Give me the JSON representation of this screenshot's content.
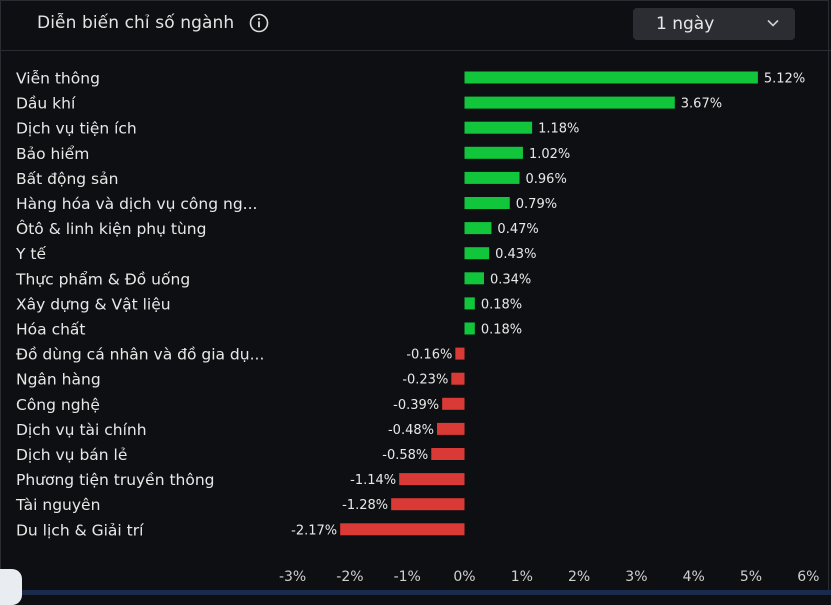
{
  "header": {
    "title": "Diễn biến chỉ số ngành",
    "info_icon": "info-circle-icon",
    "period": {
      "selected": "1 ngày",
      "icon": "chevron-down-icon"
    }
  },
  "colors": {
    "positive": "#12c63c",
    "negative": "#d93a35",
    "background": "#0e0f12",
    "text": "#e8e8e8"
  },
  "chart_data": {
    "type": "bar",
    "orientation": "horizontal",
    "title": "Diễn biến chỉ số ngành",
    "xlabel": "",
    "ylabel": "",
    "xlim": [
      -3,
      6
    ],
    "xticks": [
      -3,
      -2,
      -1,
      0,
      1,
      2,
      3,
      4,
      5,
      6
    ],
    "xtick_labels": [
      "-3%",
      "-2%",
      "-1%",
      "0%",
      "1%",
      "2%",
      "3%",
      "4%",
      "5%",
      "6%"
    ],
    "categories": [
      "Viễn thông",
      "Dầu khí",
      "Dịch vụ tiện ích",
      "Bảo hiểm",
      "Bất động sản",
      "Hàng hóa và dịch vụ công ng...",
      "Ôtô & linh kiện phụ tùng",
      "Y tế",
      "Thực phẩm & Đồ uống",
      "Xây dựng & Vật liệu",
      "Hóa chất",
      "Đồ dùng cá nhân và đồ gia dụ...",
      "Ngân hàng",
      "Công nghệ",
      "Dịch vụ tài chính",
      "Dịch vụ bán lẻ",
      "Phương tiện truyền thông",
      "Tài nguyên",
      "Du lịch & Giải trí"
    ],
    "values": [
      5.12,
      3.67,
      1.18,
      1.02,
      0.96,
      0.79,
      0.47,
      0.43,
      0.34,
      0.18,
      0.18,
      -0.16,
      -0.23,
      -0.39,
      -0.48,
      -0.58,
      -1.14,
      -1.28,
      -2.17
    ],
    "value_labels": [
      "5.12%",
      "3.67%",
      "1.18%",
      "1.02%",
      "0.96%",
      "0.79%",
      "0.47%",
      "0.43%",
      "0.34%",
      "0.18%",
      "0.18%",
      "-0.16%",
      "-0.23%",
      "-0.39%",
      "-0.48%",
      "-0.58%",
      "-1.14%",
      "-1.28%",
      "-2.17%"
    ]
  }
}
